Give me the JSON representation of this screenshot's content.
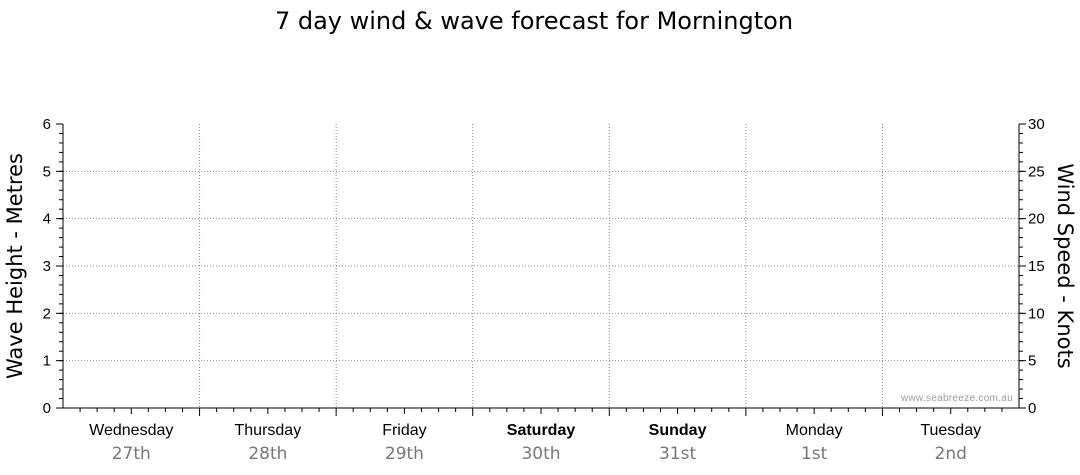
{
  "chart_data": {
    "type": "line",
    "title": "7 day wind & wave forecast for Mornington",
    "ylabel_left": "Wave Height - Metres",
    "ylabel_right": "Wind Speed - Knots",
    "ylim_left": [
      0,
      6
    ],
    "ylim_right": [
      0,
      30
    ],
    "yticks_left": [
      "0",
      "1",
      "2",
      "3",
      "4",
      "5",
      "6"
    ],
    "yticks_right": [
      "0",
      "5",
      "10",
      "15",
      "20",
      "25",
      "30"
    ],
    "grid": true,
    "days": [
      {
        "name": "Wednesday",
        "date": "27th",
        "weekend": false
      },
      {
        "name": "Thursday",
        "date": "28th",
        "weekend": false
      },
      {
        "name": "Friday",
        "date": "29th",
        "weekend": false
      },
      {
        "name": "Saturday",
        "date": "30th",
        "weekend": true
      },
      {
        "name": "Sunday",
        "date": "31st",
        "weekend": true
      },
      {
        "name": "Monday",
        "date": "1st",
        "weekend": false
      },
      {
        "name": "Tuesday",
        "date": "2nd",
        "weekend": false
      }
    ],
    "series": []
  },
  "watermark": "www.seabreeze.com.au"
}
